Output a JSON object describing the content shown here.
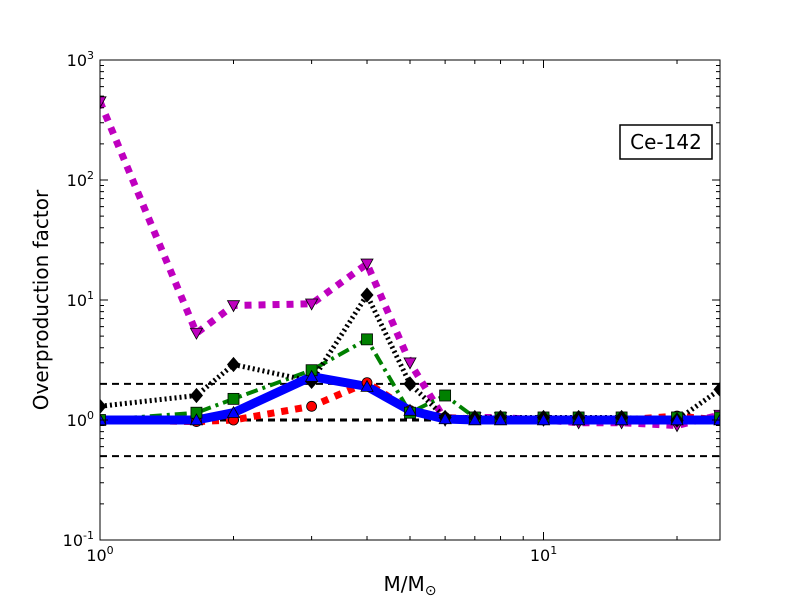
{
  "chart_data": {
    "type": "line",
    "title": "",
    "annotation": "Ce-142",
    "xlabel": "M/M",
    "xlabel_subscript": "⊙",
    "ylabel": "Overproduction factor",
    "xscale": "log",
    "yscale": "log",
    "xlim": [
      1,
      25
    ],
    "ylim": [
      0.1,
      1000
    ],
    "x_ticks": [
      {
        "value": 1,
        "base": "10",
        "exp": "0"
      },
      {
        "value": 10,
        "base": "10",
        "exp": "1"
      }
    ],
    "y_ticks": [
      {
        "value": 0.1,
        "base": "10",
        "exp": "-1"
      },
      {
        "value": 1,
        "base": "10",
        "exp": "0"
      },
      {
        "value": 10,
        "base": "10",
        "exp": "1"
      },
      {
        "value": 100,
        "base": "10",
        "exp": "2"
      },
      {
        "value": 1000,
        "base": "10",
        "exp": "3"
      }
    ],
    "reference_lines": [
      0.5,
      1,
      2
    ],
    "series": [
      {
        "color": "#ff0000",
        "dash": "dotted-thick",
        "marker": "circle",
        "x": [
          1,
          1.65,
          2,
          3,
          4,
          5,
          6,
          7,
          8,
          10,
          12,
          15,
          20,
          25
        ],
        "y": [
          1.0,
          0.97,
          1.0,
          1.3,
          2.05,
          1.2,
          1.05,
          1.02,
          1.02,
          1.0,
          1.0,
          1.0,
          1.08,
          1.0
        ]
      },
      {
        "color": "#0000ff",
        "dash": "solid",
        "marker": "triangle-up",
        "x": [
          1,
          1.65,
          2,
          3,
          4,
          5,
          6,
          7,
          8,
          10,
          12,
          15,
          20,
          25
        ],
        "y": [
          1.0,
          1.0,
          1.15,
          2.3,
          1.9,
          1.2,
          1.02,
          1.0,
          1.0,
          1.0,
          1.0,
          1.0,
          1.0,
          1.0
        ]
      },
      {
        "color": "#008000",
        "dash": "dashdot",
        "marker": "square",
        "x": [
          1,
          1.65,
          2,
          3,
          4,
          5,
          6,
          7,
          8,
          10,
          12,
          15,
          20,
          25
        ],
        "y": [
          1.0,
          1.15,
          1.5,
          2.6,
          4.7,
          1.15,
          1.6,
          1.05,
          1.05,
          1.05,
          1.05,
          1.05,
          1.05,
          1.05
        ]
      },
      {
        "color": "#000000",
        "dash": "dotted",
        "marker": "diamond",
        "x": [
          1,
          1.65,
          2,
          3,
          4,
          5,
          6,
          7,
          8,
          10,
          12,
          15,
          20,
          25
        ],
        "y": [
          1.3,
          1.6,
          2.9,
          2.1,
          11.0,
          2.0,
          1.05,
          1.05,
          1.05,
          1.05,
          1.05,
          1.05,
          1.0,
          1.8
        ]
      },
      {
        "color": "#bf00bf",
        "dash": "dotted-thick",
        "marker": "triangle-down",
        "x": [
          1,
          1.65,
          2,
          3,
          4,
          5,
          6,
          7,
          8,
          10,
          12,
          15,
          20,
          25
        ],
        "y": [
          450,
          5.3,
          9.0,
          9.3,
          20.0,
          3.0,
          1.0,
          1.05,
          1.05,
          1.0,
          0.95,
          0.95,
          0.9,
          1.1
        ]
      }
    ]
  }
}
